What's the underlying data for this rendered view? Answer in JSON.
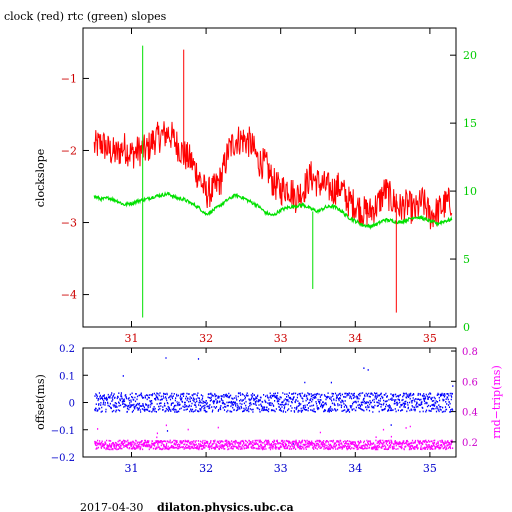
{
  "header": {
    "title": "clock (red) rtc (green) slopes"
  },
  "footer": {
    "date": "2017-04-30",
    "host": "dilaton.physics.ubc.ca"
  },
  "colors": {
    "clock": "#ff0000",
    "rtc": "#00e000",
    "offset": "#0000ff",
    "rndtrip": "#ff00ff",
    "frame": "#000000"
  },
  "chart_data": [
    {
      "type": "line",
      "title": "clock (red) rtc (green) slopes",
      "ylabel": "clockslope",
      "y2label": "",
      "xlim": [
        30.35,
        35.35
      ],
      "ylim": [
        -4.45,
        -0.3
      ],
      "y2lim": [
        0,
        22
      ],
      "xticks": [
        31,
        32,
        33,
        34,
        35
      ],
      "yticks": [
        -4,
        -3,
        -2,
        -1
      ],
      "y2ticks": [
        0,
        5,
        10,
        15,
        20
      ],
      "grid": false,
      "series": [
        {
          "name": "clock (red)",
          "axis": "left",
          "color": "#ff0000",
          "x": [
            30.5,
            30.6,
            30.7,
            30.8,
            30.9,
            31.0,
            31.1,
            31.2,
            31.3,
            31.4,
            31.5,
            31.6,
            31.7,
            31.8,
            31.9,
            32.0,
            32.1,
            32.2,
            32.3,
            32.4,
            32.5,
            32.6,
            32.7,
            32.8,
            32.9,
            33.0,
            33.1,
            33.2,
            33.3,
            33.4,
            33.5,
            33.6,
            33.7,
            33.8,
            33.9,
            34.0,
            34.1,
            34.2,
            34.3,
            34.4,
            34.5,
            34.6,
            34.7,
            34.8,
            34.9,
            35.0,
            35.1,
            35.2,
            35.3
          ],
          "y": [
            -1.95,
            -1.9,
            -2.0,
            -2.05,
            -1.95,
            -2.05,
            -2.0,
            -2.0,
            -1.85,
            -1.8,
            -1.75,
            -1.9,
            -2.05,
            -2.15,
            -2.35,
            -2.6,
            -2.55,
            -2.4,
            -2.0,
            -1.85,
            -1.85,
            -1.9,
            -2.15,
            -2.2,
            -2.45,
            -2.55,
            -2.5,
            -2.65,
            -2.55,
            -2.35,
            -2.45,
            -2.5,
            -2.55,
            -2.5,
            -2.7,
            -2.75,
            -2.85,
            -2.85,
            -2.75,
            -2.55,
            -2.7,
            -2.8,
            -2.75,
            -2.85,
            -2.7,
            -2.9,
            -2.85,
            -2.75,
            -2.7
          ]
        },
        {
          "name": "rtc (green)",
          "axis": "right",
          "color": "#00e000",
          "x": [
            30.5,
            30.6,
            30.7,
            30.8,
            30.9,
            31.0,
            31.1,
            31.2,
            31.3,
            31.4,
            31.5,
            31.6,
            31.7,
            31.8,
            31.9,
            32.0,
            32.1,
            32.2,
            32.3,
            32.4,
            32.5,
            32.6,
            32.7,
            32.8,
            32.9,
            33.0,
            33.1,
            33.2,
            33.3,
            33.4,
            33.5,
            33.6,
            33.7,
            33.8,
            33.9,
            34.0,
            34.1,
            34.2,
            34.3,
            34.4,
            34.5,
            34.6,
            34.7,
            34.8,
            34.9,
            35.0,
            35.1,
            35.2,
            35.3
          ],
          "y": [
            9.6,
            9.4,
            9.5,
            9.3,
            9.0,
            9.1,
            9.3,
            9.4,
            9.6,
            9.7,
            9.8,
            9.5,
            9.4,
            9.1,
            8.8,
            8.3,
            8.6,
            9.0,
            9.4,
            9.7,
            9.5,
            9.2,
            8.9,
            8.4,
            8.2,
            8.6,
            8.8,
            8.9,
            9.0,
            8.7,
            8.5,
            8.8,
            8.9,
            8.6,
            8.1,
            7.8,
            7.5,
            7.4,
            7.6,
            7.9,
            7.8,
            7.7,
            7.9,
            8.1,
            8.0,
            7.8,
            7.6,
            7.8,
            7.9
          ]
        }
      ],
      "spikes": [
        {
          "series": "rtc (green)",
          "x": 31.15,
          "y_top": 20.7,
          "y_bottom": 0.7
        },
        {
          "series": "rtc (green)",
          "x": 33.43,
          "y_top": 8.5,
          "y_bottom": 2.8
        },
        {
          "series": "clock (red)",
          "x": 31.7,
          "y_top": -0.6,
          "y_bottom": -2.2
        },
        {
          "series": "clock (red)",
          "x": 34.55,
          "y_top": -2.6,
          "y_bottom": -4.25
        }
      ]
    },
    {
      "type": "scatter",
      "ylabel": "offset(ms)",
      "y2label": "rnd−trip(ms)",
      "xlim": [
        30.35,
        35.35
      ],
      "ylim": [
        -0.2,
        0.2
      ],
      "y2lim": [
        0.1,
        0.82
      ],
      "xticks": [
        31,
        32,
        33,
        34,
        35
      ],
      "ytick_labels": [
        "0.2",
        "0.1",
        "0",
        "−0.1",
        "−0.2"
      ],
      "yticks": [
        0.2,
        0.1,
        0,
        -0.1,
        -0.2
      ],
      "y2tick_labels": [
        "0.8",
        "0.6",
        "0.4",
        "0.2"
      ],
      "y2ticks": [
        0.8,
        0.6,
        0.4,
        0.2
      ],
      "grid": false,
      "series": [
        {
          "name": "offset",
          "axis": "left",
          "color": "#0000ff",
          "x_range": [
            30.5,
            35.3
          ],
          "y_center": 0.0,
          "y_spread": 0.035
        },
        {
          "name": "rnd-trip",
          "axis": "right",
          "color": "#ff00ff",
          "x_range": [
            30.5,
            35.3
          ],
          "y_center": 0.18,
          "y_spread": 0.03
        }
      ]
    }
  ]
}
